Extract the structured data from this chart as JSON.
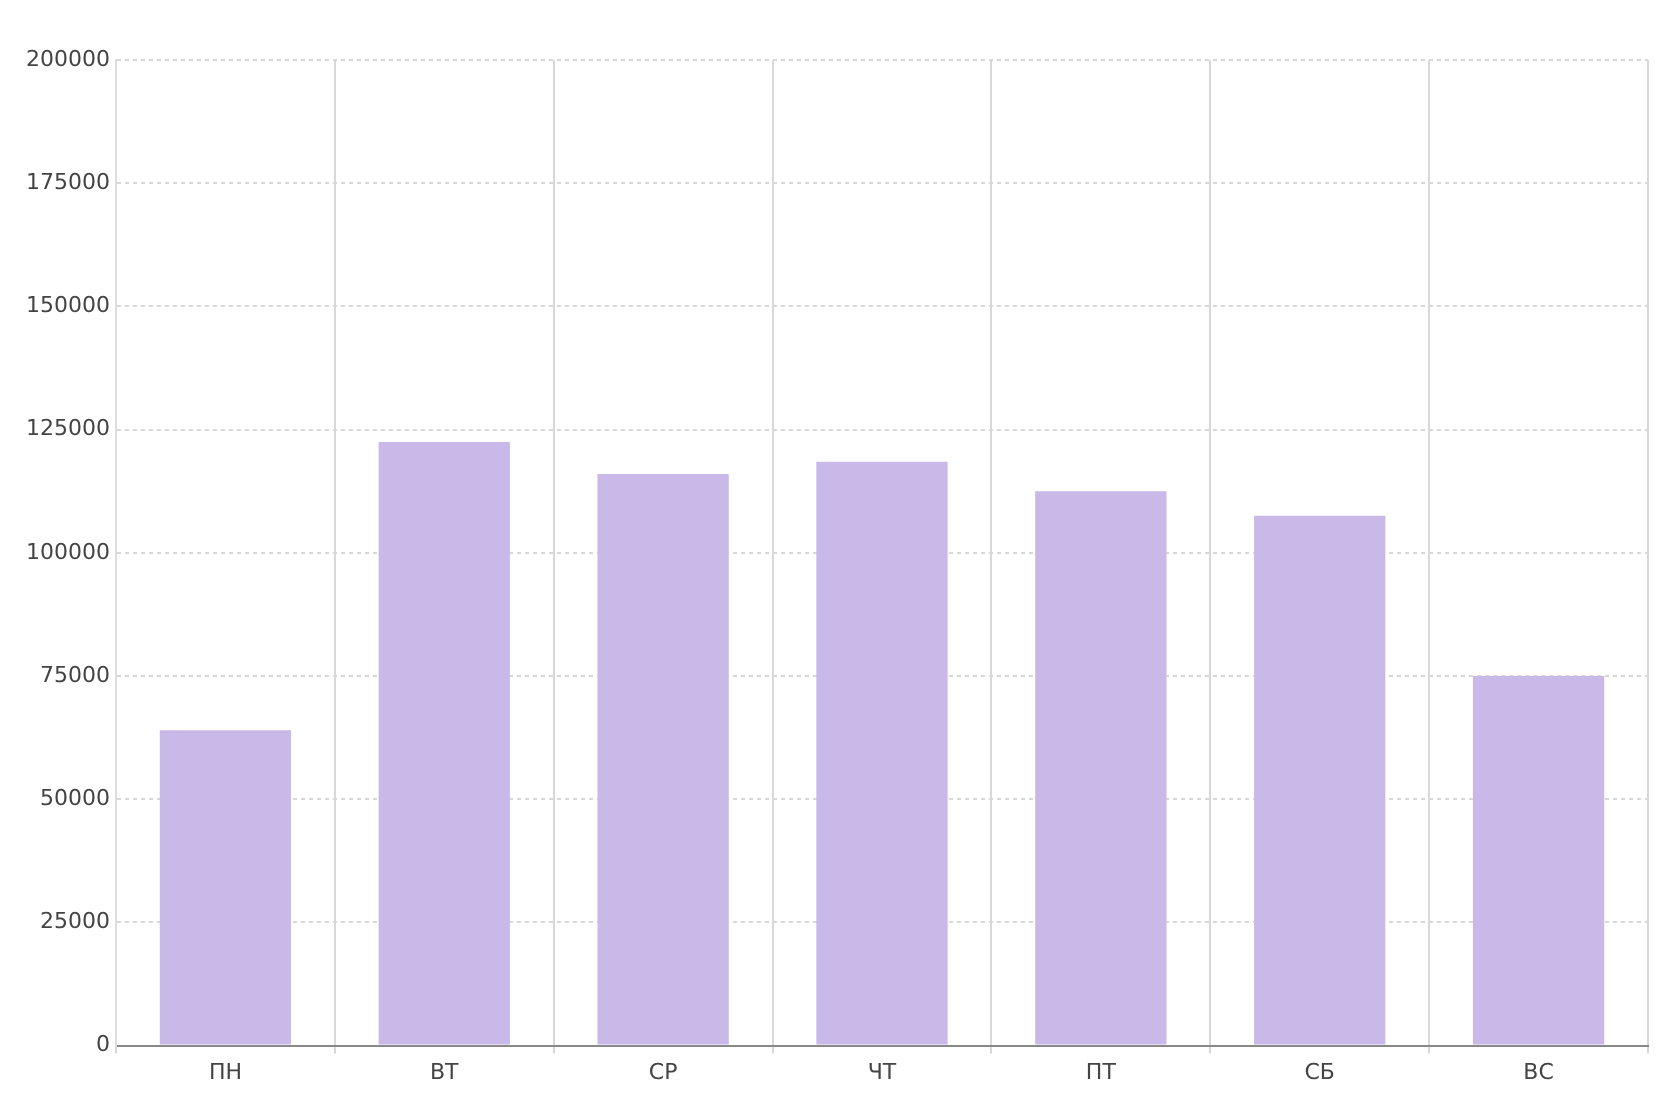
{
  "chart_data": {
    "type": "bar",
    "categories": [
      "ПН",
      "ВТ",
      "СР",
      "ЧТ",
      "ПТ",
      "СБ",
      "ВС"
    ],
    "series": [
      {
        "color": "#c9b9e8",
        "values": [
          64000,
          122500,
          116000,
          118500,
          112500,
          107500,
          75000
        ]
      }
    ],
    "ylim": [
      0,
      200000
    ],
    "yticks": [
      0,
      25000,
      50000,
      75000,
      100000,
      125000,
      150000,
      175000,
      200000
    ],
    "grid": true,
    "legend": false
  }
}
